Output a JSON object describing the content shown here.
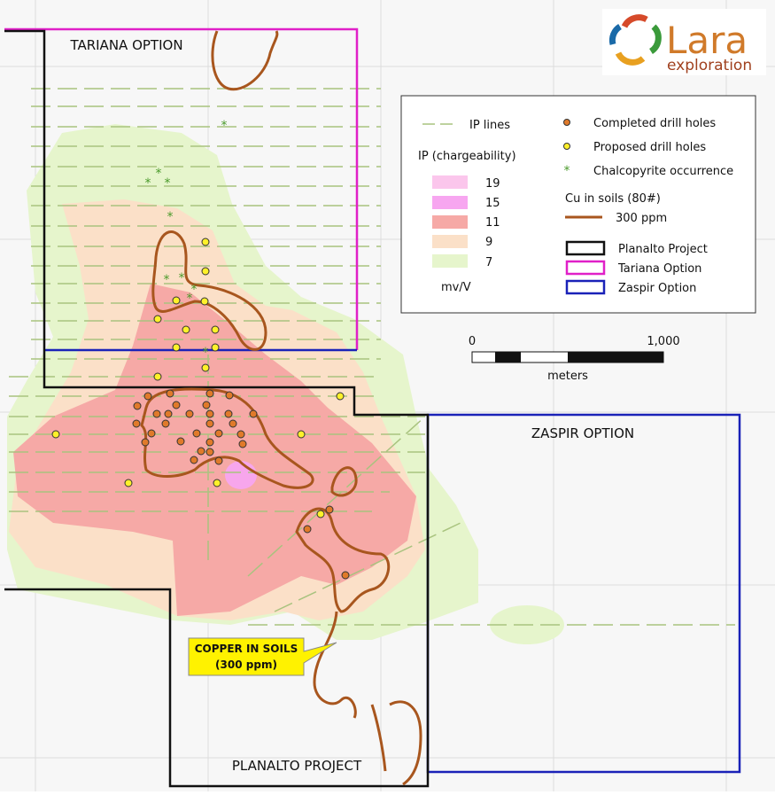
{
  "logo": {
    "name": "Lara",
    "sub": "exploration"
  },
  "map_labels": {
    "tariana": "TARIANA OPTION",
    "zaspir": "ZASPIR OPTION",
    "planalto": "PLANALTO PROJECT"
  },
  "callout": {
    "line1": "COPPER IN SOILS",
    "line2": "(300 ppm)"
  },
  "legend": {
    "ip_lines": "IP lines",
    "ip_title": "IP (chargeability)",
    "ip_levels": [
      "19",
      "15",
      "11",
      "9",
      "7"
    ],
    "ip_unit": "mv/V",
    "completed": "Completed drill holes",
    "proposed": "Proposed drill holes",
    "chalco": "Chalcopyrite occurrence",
    "cu_title": "Cu in soils (80#)",
    "cu_level": "300 ppm",
    "planalto": "Planalto Project",
    "tariana": "Tariana Option",
    "zaspir": "Zaspir Option"
  },
  "scale": {
    "start": "0",
    "end": "1,000",
    "unit": "meters"
  }
}
